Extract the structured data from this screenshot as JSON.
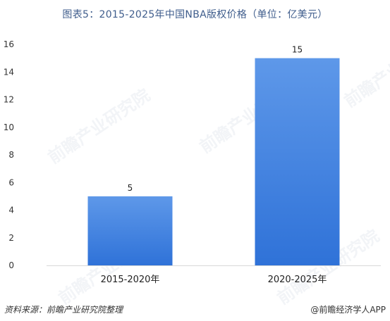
{
  "chart_data": {
    "type": "bar",
    "title": "图表5：2015-2025年中国NBA版权价格（单位：亿美元）",
    "categories": [
      "2015-2020年",
      "2020-2025年"
    ],
    "values": [
      5,
      15
    ],
    "xlabel": "",
    "ylabel": "",
    "ylim": [
      0,
      16
    ],
    "yticks": [
      0,
      2,
      4,
      6,
      8,
      10,
      12,
      14,
      16
    ],
    "grid": false,
    "legend": "none",
    "bar_color_top": "#5e98e9",
    "bar_color_bottom": "#2f72d8"
  },
  "footer": {
    "source": "资料来源：前瞻产业研究院整理",
    "credit": "@前瞻经济学人APP"
  },
  "watermark": {
    "text": "前瞻产业研究院"
  }
}
